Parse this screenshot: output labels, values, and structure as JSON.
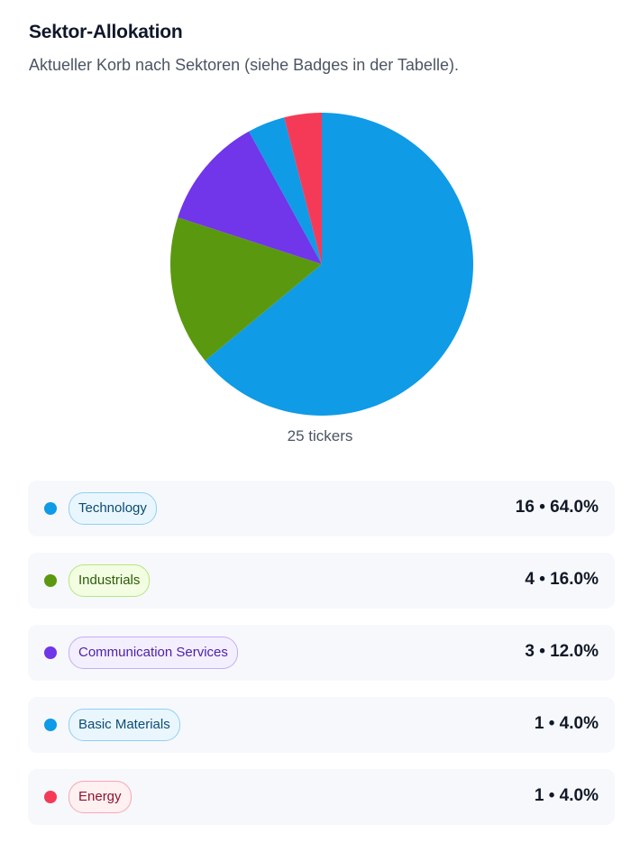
{
  "header": {
    "title": "Sektor-Allokation",
    "subtitle": "Aktueller Korb nach Sektoren (siehe Badges in der Tabelle)."
  },
  "chart_data": {
    "type": "pie",
    "title": "",
    "caption": "25 tickers",
    "total": 25,
    "slices": [
      {
        "label": "Technology",
        "count": 16,
        "percent": 64.0,
        "color": "#0f9be6"
      },
      {
        "label": "Industrials",
        "count": 4,
        "percent": 16.0,
        "color": "#5a990f"
      },
      {
        "label": "Communication Services",
        "count": 3,
        "percent": 12.0,
        "color": "#7135ea"
      },
      {
        "label": "Basic Materials",
        "count": 1,
        "percent": 4.0,
        "color": "#0f9be6"
      },
      {
        "label": "Energy",
        "count": 1,
        "percent": 4.0,
        "color": "#f53a58"
      }
    ]
  },
  "legend": {
    "items": [
      {
        "label": "Technology",
        "value": "16 • 64.0%",
        "dot": "#0f9be6",
        "badge_bg": "#eaf6fe",
        "badge_border": "#8fd0f5",
        "badge_text": "#0b4c72"
      },
      {
        "label": "Industrials",
        "value": "4 • 16.0%",
        "dot": "#5a990f",
        "badge_bg": "#f2fde2",
        "badge_border": "#b6e67d",
        "badge_text": "#2f5a09"
      },
      {
        "label": "Communication Services",
        "value": "3 • 12.0%",
        "dot": "#7135ea",
        "badge_bg": "#f4effe",
        "badge_border": "#c4adf5",
        "badge_text": "#4c1fa8"
      },
      {
        "label": "Basic Materials",
        "value": "1 • 4.0%",
        "dot": "#0f9be6",
        "badge_bg": "#eaf6fe",
        "badge_border": "#8fd0f5",
        "badge_text": "#0b4c72"
      },
      {
        "label": "Energy",
        "value": "1 • 4.0%",
        "dot": "#f53a58",
        "badge_bg": "#fff0f2",
        "badge_border": "#f6a6b4",
        "badge_text": "#8f1429"
      }
    ]
  }
}
